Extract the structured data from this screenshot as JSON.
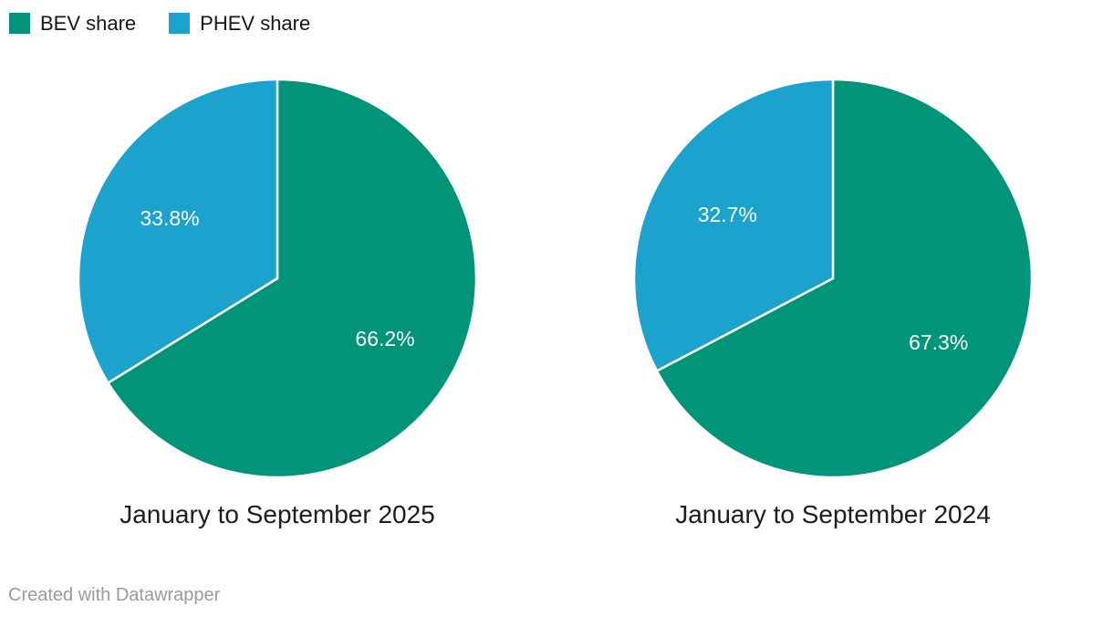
{
  "colors": {
    "background": "#ffffff",
    "bev_green": "#009478",
    "phev_blue": "#1ba2cd",
    "slice_label_white": "#ffffff",
    "caption_dark": "#1d1d1d",
    "footer_gray": "#9b9b9b"
  },
  "legend": {
    "position": "top-left",
    "items": [
      {
        "label": "BEV share",
        "color": "#009478"
      },
      {
        "label": "PHEV share",
        "color": "#1ba2cd"
      }
    ]
  },
  "chart_data": [
    {
      "type": "pie",
      "title": "January to September 2025",
      "start_angle": 0,
      "direction": "clockwise",
      "slices": [
        {
          "label": "BEV share",
          "value": 66.2,
          "display_label": "66.2%",
          "color": "#009478"
        },
        {
          "label": "PHEV share",
          "value": 33.8,
          "display_label": "33.8%",
          "color": "#1ba2cd"
        }
      ]
    },
    {
      "type": "pie",
      "title": "January to September 2024",
      "start_angle": 0,
      "direction": "clockwise",
      "slices": [
        {
          "label": "BEV share",
          "value": 67.3,
          "display_label": "67.3%",
          "color": "#009478"
        },
        {
          "label": "PHEV share",
          "value": 32.7,
          "display_label": "32.7%",
          "color": "#1ba2cd"
        }
      ]
    }
  ],
  "footer": {
    "text": "Created with Datawrapper"
  }
}
